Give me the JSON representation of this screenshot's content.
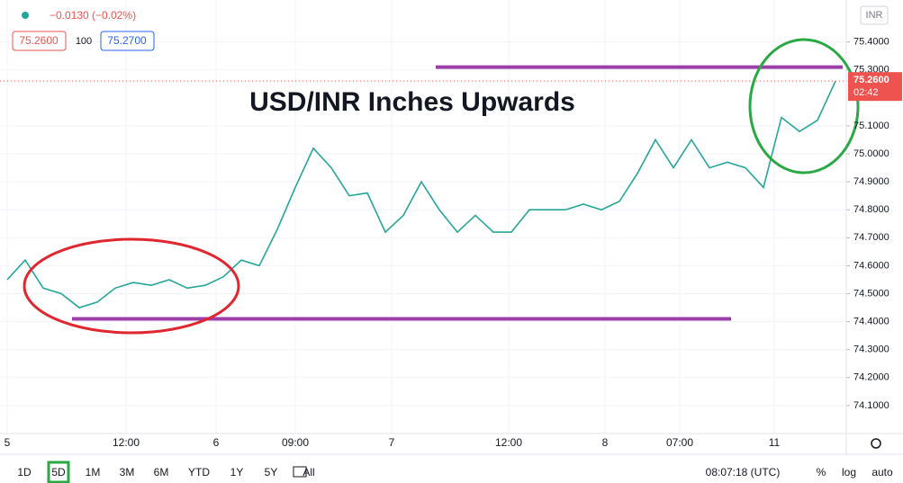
{
  "chart_data": {
    "type": "line",
    "header": {
      "change": "−0.0130 (−0.02%)",
      "bid": "75.2600",
      "spread": "100",
      "ask": "75.2700",
      "symbol": "INR"
    },
    "annotation": "USD/INR Inches Upwards",
    "x": [
      0,
      1,
      2,
      3,
      4,
      5,
      6,
      7,
      8,
      9,
      10,
      11,
      12,
      13,
      14,
      15,
      16,
      17,
      18,
      19,
      20,
      21,
      22,
      23,
      24,
      25,
      26,
      27,
      28,
      29,
      30,
      31,
      32,
      33,
      34,
      35,
      36,
      37,
      38,
      39,
      40,
      41,
      42,
      43,
      44,
      45,
      46
    ],
    "series": [
      {
        "name": "USD/INR",
        "color": "#26a69a",
        "values": [
          74.55,
          74.62,
          74.52,
          74.5,
          74.45,
          74.47,
          74.52,
          74.54,
          74.53,
          74.55,
          74.52,
          74.53,
          74.56,
          74.62,
          74.6,
          74.73,
          74.88,
          75.02,
          74.95,
          74.85,
          74.86,
          74.72,
          74.78,
          74.9,
          74.8,
          74.72,
          74.78,
          74.72,
          74.72,
          74.8,
          74.8,
          74.8,
          74.82,
          74.8,
          74.83,
          74.93,
          75.05,
          74.95,
          75.05,
          74.95,
          74.97,
          74.95,
          74.88,
          75.13,
          75.08,
          75.12,
          75.26
        ]
      }
    ],
    "xlim": [
      -0.4,
      46.6
    ],
    "xticks": [
      {
        "value": 0,
        "label": "5"
      },
      {
        "value": 6.6,
        "label": "12:00"
      },
      {
        "value": 11.6,
        "label": "6"
      },
      {
        "value": 16,
        "label": "09:00"
      },
      {
        "value": 21.35,
        "label": "7"
      },
      {
        "value": 27.85,
        "label": "12:00"
      },
      {
        "value": 33.2,
        "label": "8"
      },
      {
        "value": 37.35,
        "label": "07:00"
      },
      {
        "value": 42.6,
        "label": "11"
      }
    ],
    "ylim": [
      74.0,
      75.55
    ],
    "yticks": [
      {
        "value": 74.1,
        "label": "74.1000"
      },
      {
        "value": 74.2,
        "label": "74.2000"
      },
      {
        "value": 74.3,
        "label": "74.3000"
      },
      {
        "value": 74.4,
        "label": "74.4000"
      },
      {
        "value": 74.5,
        "label": "74.5000"
      },
      {
        "value": 74.6,
        "label": "74.6000"
      },
      {
        "value": 74.7,
        "label": "74.7000"
      },
      {
        "value": 74.8,
        "label": "74.8000"
      },
      {
        "value": 74.9,
        "label": "74.9000"
      },
      {
        "value": 75.0,
        "label": "75.0000"
      },
      {
        "value": 75.1,
        "label": "75.1000"
      },
      {
        "value": 75.3,
        "label": "75.3000"
      },
      {
        "value": 75.4,
        "label": "75.4000"
      }
    ],
    "last_price": {
      "value": 75.26,
      "label": "75.2600",
      "countdown": "02:42"
    },
    "hlines": [
      {
        "value": 75.31,
        "x0": 23.8,
        "x1": 46.4,
        "color": "#9c3ea8"
      },
      {
        "value": 74.41,
        "x0": 3.6,
        "x1": 40.2,
        "color": "#9c3ea8"
      }
    ],
    "grid": true,
    "toolbar": {
      "ranges": [
        "1D",
        "5D",
        "1M",
        "3M",
        "6M",
        "YTD",
        "1Y",
        "5Y",
        "All"
      ],
      "active": 1,
      "clock": "08:07:18 (UTC)",
      "options": [
        "%",
        "log",
        "auto"
      ]
    }
  }
}
